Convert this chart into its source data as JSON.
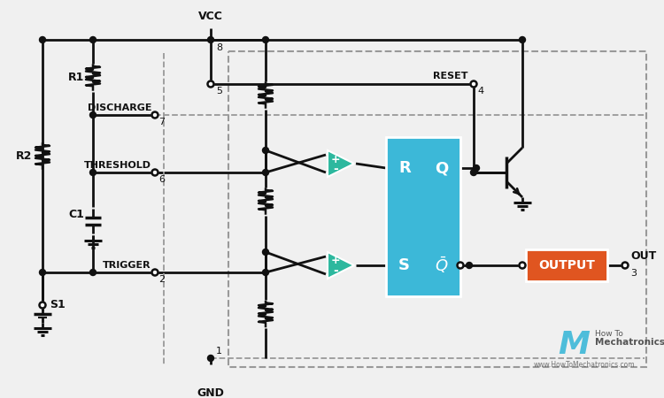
{
  "bg_color": "#f0f0f0",
  "line_color": "#111111",
  "dashed_color": "#999999",
  "teal_color": "#2db89e",
  "blue_color": "#3cb8d8",
  "orange_color": "#e05520",
  "white": "#ffffff",
  "labels": {
    "VCC": "VCC",
    "GND": "GND",
    "DISCHARGE": "DISCHARGE",
    "THRESHOLD": "THRESHOLD",
    "TRIGGER": "TRIGGER",
    "RESET": "RESET",
    "OUTPUT": "OUTPUT",
    "OUT": "OUT",
    "R1": "R1",
    "R2": "R2",
    "C1": "C1",
    "S1": "S1",
    "pin1": "1",
    "pin2": "2",
    "pin3": "3",
    "pin4": "4",
    "pin5": "5",
    "pin6": "6",
    "pin7": "7",
    "pin8": "8",
    "R_latch": "R",
    "Q_latch": "Q",
    "S_latch": "S"
  }
}
